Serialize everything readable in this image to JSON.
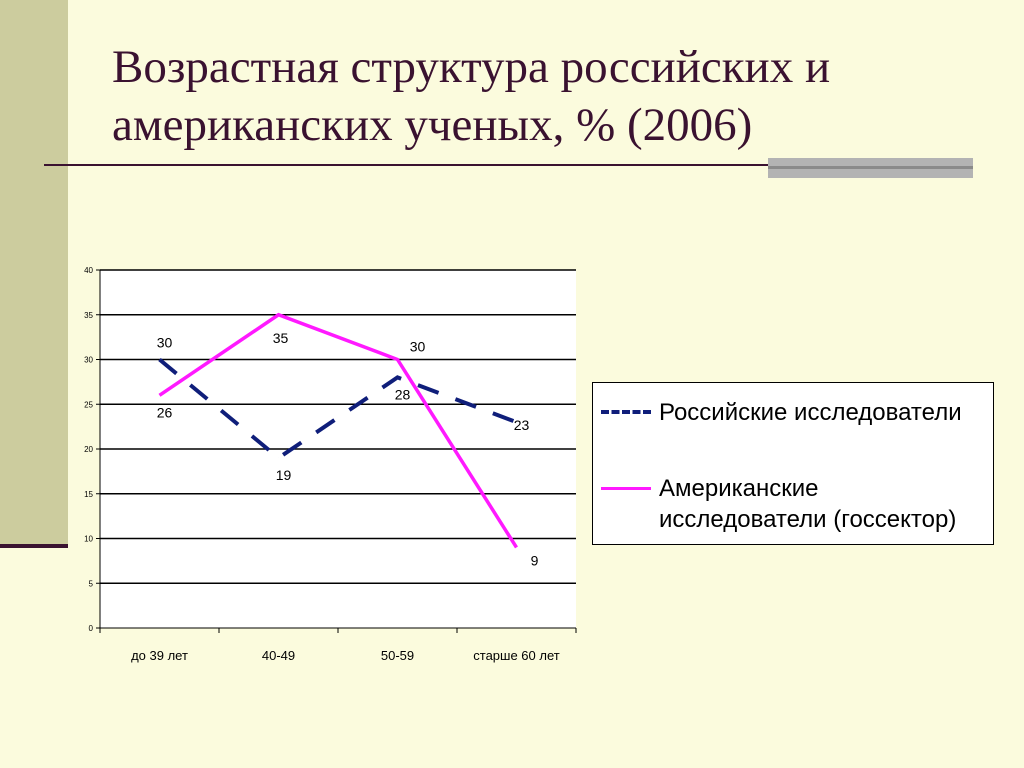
{
  "slide": {
    "title": "Возрастная структура российских и американских ученых, % (2006)"
  },
  "colors": {
    "background": "#fbfbdd",
    "side_bar": "#cccc9e",
    "title_text": "#3a1230",
    "accent_bar": "#b3b3b3",
    "russian_series": "#0f1e7a",
    "american_series": "#ff19ff"
  },
  "chart_data": {
    "type": "line",
    "categories": [
      "до 39 лет",
      "40-49",
      "50-59",
      "старше 60 лет"
    ],
    "series": [
      {
        "name": "Российские исследователи",
        "values": [
          30,
          19,
          28,
          23
        ],
        "color": "#0f1e7a",
        "dash": true,
        "icon": "dashed-line-icon"
      },
      {
        "name": "Американские исследователи (госсектор)",
        "values": [
          26,
          35,
          30,
          9
        ],
        "color": "#ff19ff",
        "dash": false,
        "icon": "solid-line-icon"
      }
    ],
    "yticks": [
      0,
      5,
      10,
      15,
      20,
      25,
      30,
      35,
      40
    ],
    "ylim": [
      0,
      40
    ],
    "grid": true,
    "legend_position": "right"
  }
}
